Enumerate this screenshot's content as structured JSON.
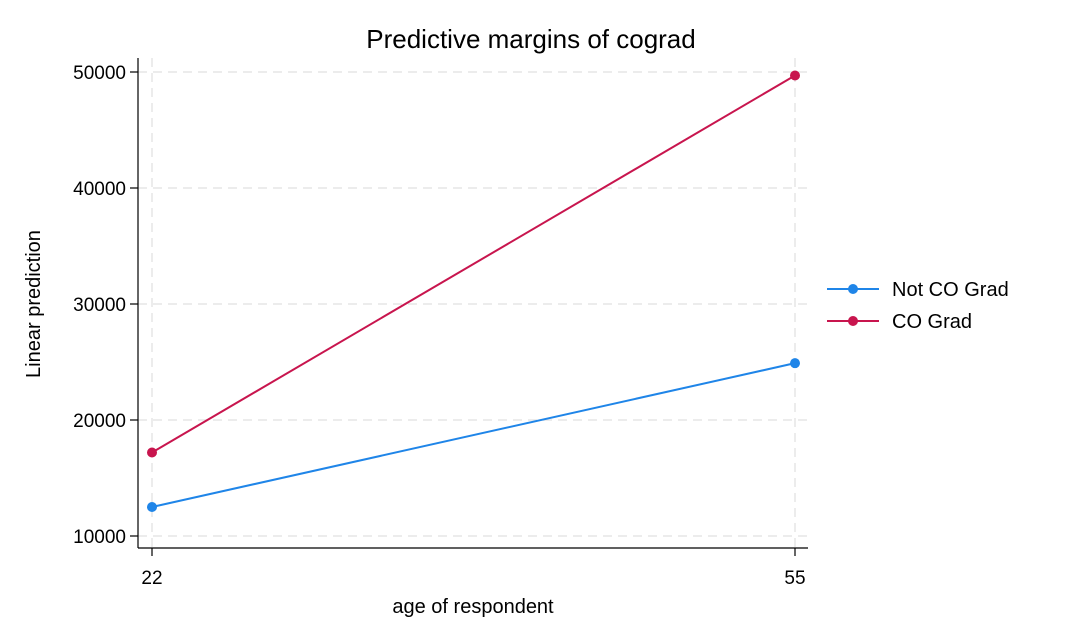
{
  "chart_data": {
    "type": "line",
    "title": "Predictive margins of cograd",
    "xlabel": "age of respondent",
    "ylabel": "Linear prediction",
    "x": [
      22,
      55
    ],
    "x_ticks": [
      "22",
      "55"
    ],
    "y_ticks": [
      "10000",
      "20000",
      "30000",
      "40000",
      "50000"
    ],
    "y_tick_values": [
      10000,
      20000,
      30000,
      40000,
      50000
    ],
    "xlim": [
      22,
      55
    ],
    "ylim": [
      10000,
      50000
    ],
    "grid": true,
    "legend_position": "right",
    "series": [
      {
        "name": "Not CO Grad",
        "color": "#1f85e8",
        "values": [
          12500,
          24900
        ]
      },
      {
        "name": "CO Grad",
        "color": "#c8154e",
        "values": [
          17200,
          49700
        ]
      }
    ]
  }
}
